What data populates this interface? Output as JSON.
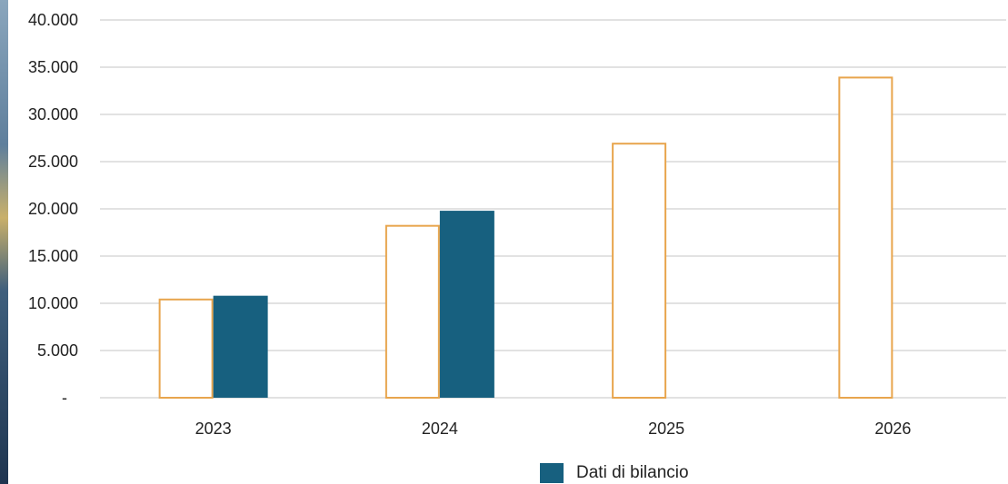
{
  "chart_data": {
    "type": "bar",
    "categories": [
      "2023",
      "2024",
      "2025",
      "2026"
    ],
    "series": [
      {
        "values": [
          10500,
          18300,
          27000,
          34000
        ],
        "style": "outline",
        "color": "#e8a54d"
      },
      {
        "name": "Dati di bilancio",
        "values": [
          10800,
          19800,
          null,
          null
        ],
        "style": "filled",
        "color": "#17607f"
      }
    ],
    "y_tick_labels": [
      "-",
      "5.000",
      "10.000",
      "15.000",
      "20.000",
      "25.000",
      "30.000",
      "35.000",
      "40.000"
    ],
    "ylim": [
      0,
      40000
    ],
    "grid": true,
    "legend": {
      "position": "bottom-right",
      "entries": [
        "Dati di bilancio"
      ]
    }
  },
  "legend_label": "Dati di bilancio",
  "colors": {
    "grid": "#d9d9d9",
    "filled": "#17607f",
    "outline": "#e8a54d"
  }
}
